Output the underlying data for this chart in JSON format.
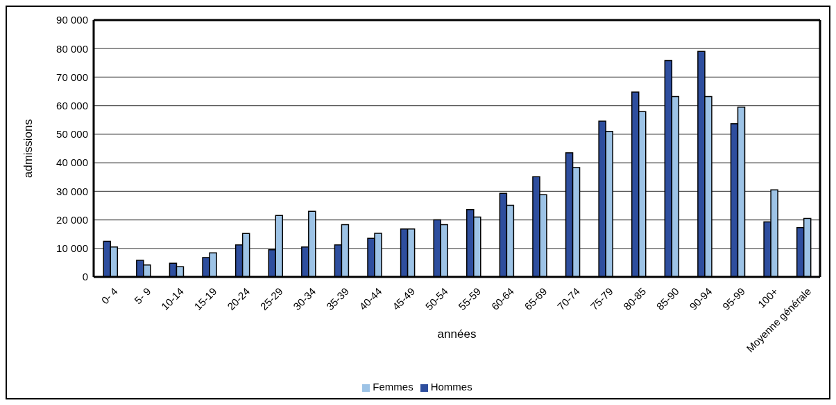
{
  "chart_data": {
    "type": "bar",
    "xlabel": "années",
    "ylabel": "admissions",
    "categories": [
      "0- 4",
      "5- 9",
      "10-14",
      "15-19",
      "20-24",
      "25-29",
      "30-34",
      "35-39",
      "40-44",
      "45-49",
      "50-54",
      "55-59",
      "60-64",
      "65-69",
      "70-74",
      "75-79",
      "80-85",
      "85-90",
      "90-94",
      "95-99",
      "100+",
      "Moyenne générale"
    ],
    "series": [
      {
        "name": "Hommes",
        "color": "#2e4e9e",
        "values": [
          12500,
          5800,
          4800,
          6800,
          11200,
          9500,
          10500,
          11200,
          13500,
          16800,
          20000,
          23600,
          29300,
          35100,
          43500,
          54600,
          64800,
          75800,
          79000,
          53700,
          19300,
          17300
        ]
      },
      {
        "name": "Femmes",
        "color": "#9dc3e6",
        "values": [
          10500,
          4200,
          3600,
          8400,
          15200,
          21500,
          23000,
          18300,
          15300,
          16800,
          18300,
          21000,
          25100,
          28800,
          38300,
          51000,
          57900,
          63200,
          63200,
          59500,
          30500,
          20500
        ]
      }
    ],
    "ylim": [
      0,
      90000
    ],
    "yticks": [
      {
        "value": 0,
        "label": "0"
      },
      {
        "value": 10000,
        "label": "10 000"
      },
      {
        "value": 20000,
        "label": "20 000"
      },
      {
        "value": 30000,
        "label": "30 000"
      },
      {
        "value": 40000,
        "label": "40 000"
      },
      {
        "value": 50000,
        "label": "50 000"
      },
      {
        "value": 60000,
        "label": "60 000"
      },
      {
        "value": 70000,
        "label": "70 000"
      },
      {
        "value": 80000,
        "label": "80 000"
      },
      {
        "value": 90000,
        "label": "90 000"
      }
    ],
    "grid": "y",
    "legend": "bottom"
  }
}
